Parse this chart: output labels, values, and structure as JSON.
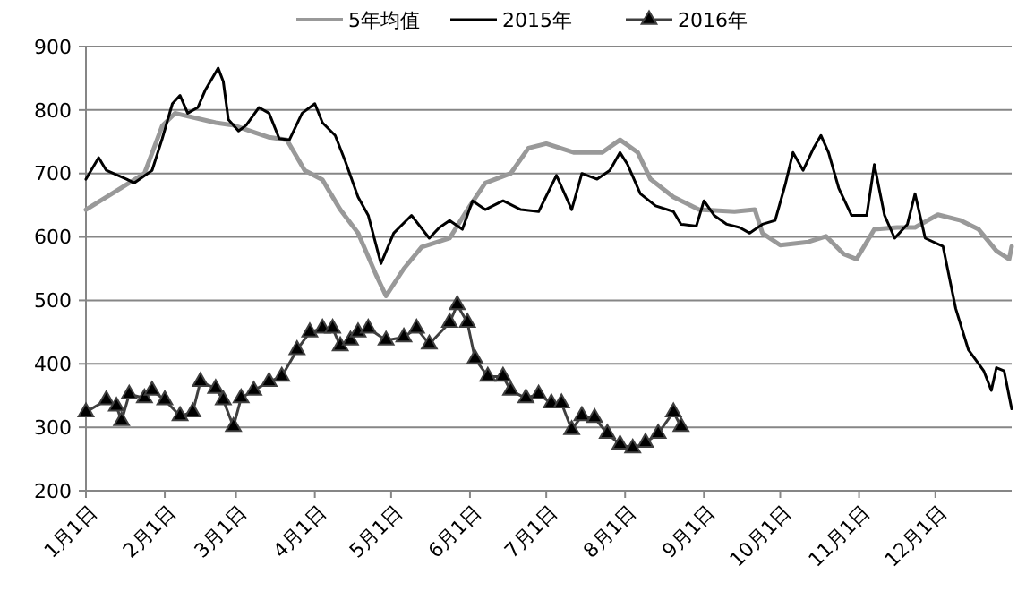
{
  "chart_data": {
    "type": "line",
    "legend": "top",
    "grid": "y",
    "xlim": [
      "--01-01",
      "--12-31"
    ],
    "ylim": [
      200,
      900
    ],
    "yticks": [
      200,
      300,
      400,
      500,
      600,
      700,
      800,
      900
    ],
    "xticks": [
      {
        "value": "--01-01",
        "label": "1月1日"
      },
      {
        "value": "--02-01",
        "label": "2月1日"
      },
      {
        "value": "--03-01",
        "label": "3月1日"
      },
      {
        "value": "--04-01",
        "label": "4月1日"
      },
      {
        "value": "--05-01",
        "label": "5月1日"
      },
      {
        "value": "--06-01",
        "label": "6月1日"
      },
      {
        "value": "--07-01",
        "label": "7月1日"
      },
      {
        "value": "--08-01",
        "label": "8月1日"
      },
      {
        "value": "--09-01",
        "label": "9月1日"
      },
      {
        "value": "--10-01",
        "label": "10月1日"
      },
      {
        "value": "--11-01",
        "label": "11月1日"
      },
      {
        "value": "--12-01",
        "label": "12月1日"
      }
    ],
    "series": [
      {
        "name": "5年均值",
        "color": "#999999",
        "marker": "none",
        "x": [
          "--01-01",
          "--01-12",
          "--01-24",
          "--01-31",
          "--02-05",
          "--02-21",
          "--02-28",
          "--03-14",
          "--03-21",
          "--03-28",
          "--04-04",
          "--04-11",
          "--04-18",
          "--04-25",
          "--04-29",
          "--05-06",
          "--05-13",
          "--05-24",
          "--05-31",
          "--06-07",
          "--06-17",
          "--06-24",
          "--07-01",
          "--07-12",
          "--07-23",
          "--07-30",
          "--08-06",
          "--08-11",
          "--08-20",
          "--08-30",
          "--09-13",
          "--09-21",
          "--09-24",
          "--10-01",
          "--10-12",
          "--10-19",
          "--10-26",
          "--10-31",
          "--11-07",
          "--11-16",
          "--11-23",
          "--12-02",
          "--12-11",
          "--12-18",
          "--12-25",
          "--12-30",
          "--12-31"
        ],
        "values": [
          643,
          670,
          700,
          775,
          795,
          780,
          776,
          757,
          753,
          705,
          690,
          643,
          606,
          541,
          507,
          550,
          584,
          598,
          643,
          685,
          700,
          740,
          747,
          733,
          733,
          753,
          733,
          691,
          663,
          643,
          640,
          643,
          606,
          587,
          592,
          601,
          573,
          565,
          612,
          615,
          615,
          635,
          626,
          612,
          578,
          565,
          585
        ]
      },
      {
        "name": "2015年",
        "color": "#000000",
        "marker": "none",
        "x": [
          "--01-01",
          "--01-06",
          "--01-09",
          "--01-17",
          "--01-20",
          "--01-27",
          "--01-31",
          "--02-04",
          "--02-07",
          "--02-10",
          "--02-14",
          "--02-17",
          "--02-22",
          "--02-24",
          "--02-26",
          "--03-02",
          "--03-05",
          "--03-10",
          "--03-14",
          "--03-18",
          "--03-22",
          "--03-27",
          "--04-01",
          "--04-04",
          "--04-09",
          "--04-13",
          "--04-18",
          "--04-22",
          "--04-27",
          "--05-02",
          "--05-09",
          "--05-16",
          "--05-20",
          "--05-24",
          "--05-29",
          "--06-02",
          "--06-07",
          "--06-14",
          "--06-21",
          "--06-28",
          "--07-05",
          "--07-11",
          "--07-15",
          "--07-21",
          "--07-26",
          "--07-30",
          "--08-02",
          "--08-07",
          "--08-13",
          "--08-20",
          "--08-23",
          "--08-29",
          "--09-01",
          "--09-05",
          "--09-10",
          "--09-15",
          "--09-19",
          "--09-24",
          "--09-29",
          "--10-03",
          "--10-06",
          "--10-10",
          "--10-14",
          "--10-17",
          "--10-20",
          "--10-24",
          "--10-29",
          "--11-04",
          "--11-07",
          "--11-11",
          "--11-15",
          "--11-20",
          "--11-23",
          "--11-27",
          "--12-04",
          "--12-09",
          "--12-14",
          "--12-20",
          "--12-23",
          "--12-25",
          "--12-28",
          "--12-31"
        ],
        "values": [
          691,
          725,
          705,
          691,
          685,
          705,
          755,
          810,
          823,
          795,
          804,
          832,
          866,
          845,
          785,
          767,
          776,
          804,
          795,
          755,
          753,
          795,
          810,
          780,
          760,
          719,
          663,
          634,
          558,
          606,
          634,
          598,
          615,
          626,
          612,
          657,
          643,
          657,
          643,
          640,
          697,
          643,
          700,
          691,
          705,
          733,
          714,
          668,
          649,
          640,
          620,
          617,
          657,
          634,
          620,
          615,
          606,
          620,
          626,
          683,
          733,
          705,
          739,
          760,
          733,
          677,
          634,
          634,
          714,
          634,
          598,
          620,
          668,
          598,
          585,
          487,
          422,
          389,
          358,
          394,
          389,
          329
        ]
      },
      {
        "name": "2016年",
        "color": "#404040",
        "marker": "triangle",
        "x": [
          "--01-01",
          "--01-09",
          "--01-13",
          "--01-15",
          "--01-18",
          "--01-24",
          "--01-27",
          "--02-01",
          "--02-07",
          "--02-12",
          "--02-15",
          "--02-21",
          "--02-24",
          "--02-28",
          "--03-03",
          "--03-08",
          "--03-14",
          "--03-19",
          "--03-25",
          "--03-30",
          "--04-04",
          "--04-08",
          "--04-11",
          "--04-15",
          "--04-18",
          "--04-22",
          "--04-29",
          "--05-06",
          "--05-11",
          "--05-16",
          "--05-24",
          "--05-27",
          "--05-31",
          "--06-03",
          "--06-08",
          "--06-14",
          "--06-17",
          "--06-23",
          "--06-28",
          "--07-03",
          "--07-07",
          "--07-11",
          "--07-15",
          "--07-20",
          "--07-25",
          "--07-30",
          "--08-04",
          "--08-09",
          "--08-14",
          "--08-20",
          "--08-23"
        ],
        "values": [
          324,
          343,
          333,
          310,
          352,
          346,
          358,
          343,
          318,
          324,
          372,
          361,
          343,
          301,
          346,
          358,
          372,
          380,
          422,
          450,
          456,
          456,
          428,
          437,
          450,
          456,
          437,
          442,
          456,
          431,
          465,
          493,
          465,
          408,
          380,
          380,
          358,
          346,
          352,
          338,
          338,
          296,
          318,
          315,
          290,
          273,
          267,
          276,
          290,
          324,
          301
        ]
      }
    ]
  }
}
